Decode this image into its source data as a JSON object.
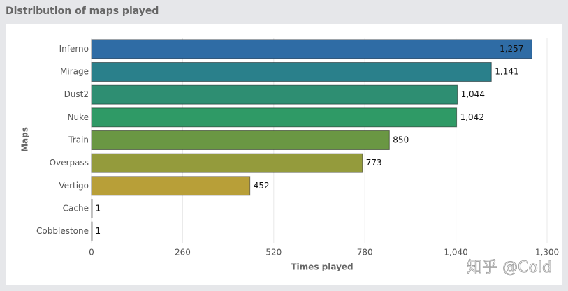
{
  "chart_data": {
    "type": "barh",
    "title": "Distribution of maps played",
    "categories": [
      "Inferno",
      "Mirage",
      "Dust2",
      "Nuke",
      "Train",
      "Overpass",
      "Vertigo",
      "Cache",
      "Cobblestone"
    ],
    "values": [
      1257,
      1141,
      1044,
      1042,
      850,
      773,
      452,
      1,
      1
    ],
    "value_labels": [
      "1,257",
      "1,141",
      "1,044",
      "1,042",
      "850",
      "773",
      "452",
      "1",
      "1"
    ],
    "colors": [
      "#2f6ca5",
      "#2a808b",
      "#2e8e72",
      "#2f9a66",
      "#6a9743",
      "#949b3c",
      "#b89f38",
      "#c07a4e",
      "#b87a4f"
    ],
    "xlim": [
      0,
      1300
    ],
    "xticks": [
      0,
      260,
      520,
      780,
      {
        "value": 1040,
        "label": "1,040"
      },
      {
        "value": 1300,
        "label": "1,300"
      }
    ],
    "xlabel": "Times played",
    "ylabel": "Maps",
    "grid": true,
    "watermark": "知乎 @Cold"
  }
}
